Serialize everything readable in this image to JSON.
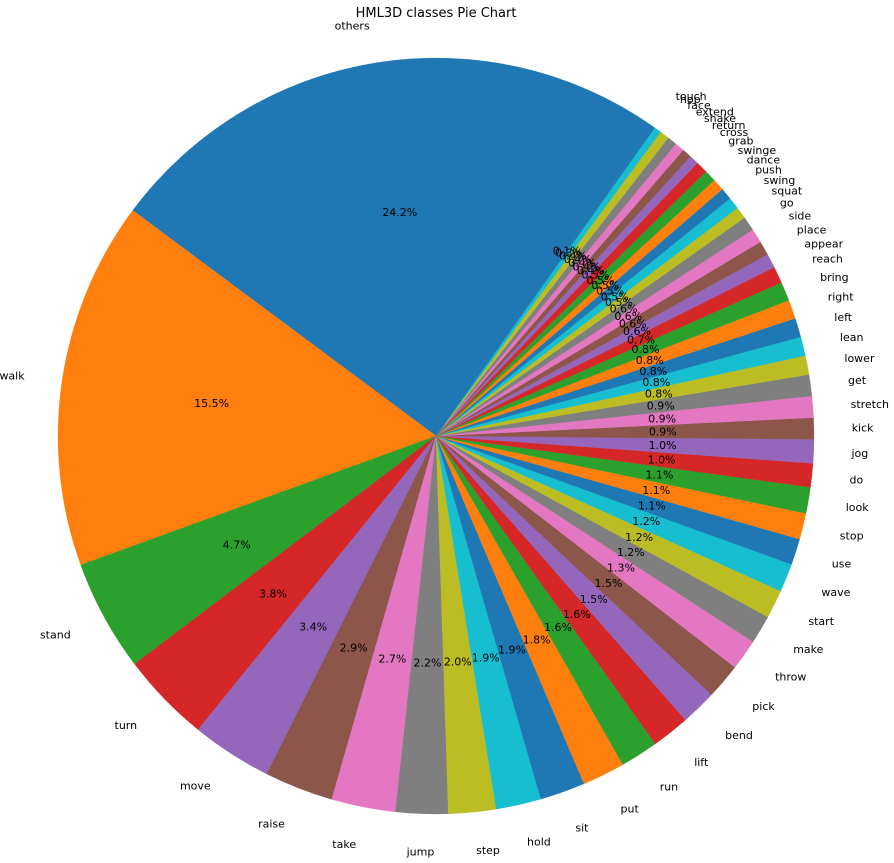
{
  "chart_data": {
    "type": "pie",
    "title": "HML3D classes Pie Chart",
    "categories": [
      "others",
      "walk",
      "stand",
      "turn",
      "move",
      "raise",
      "take",
      "jump",
      "step",
      "hold",
      "sit",
      "put",
      "run",
      "lift",
      "bend",
      "pick",
      "throw",
      "make",
      "start",
      "wave",
      "use",
      "stop",
      "look",
      "do",
      "jog",
      "kick",
      "stretch",
      "get",
      "lower",
      "lean",
      "left",
      "right",
      "bring",
      "reach",
      "appear",
      "place",
      "side",
      "go",
      "squat",
      "swing",
      "push",
      "dance",
      "swinge",
      "grab",
      "cross",
      "return",
      "shake",
      "extend",
      "face",
      "hop",
      "touch"
    ],
    "values": [
      24.2,
      15.5,
      4.7,
      3.8,
      3.4,
      2.9,
      2.7,
      2.2,
      2.0,
      1.9,
      1.9,
      1.8,
      1.6,
      1.6,
      1.5,
      1.5,
      1.3,
      1.2,
      1.2,
      1.2,
      1.1,
      1.1,
      1.1,
      1.0,
      1.0,
      0.9,
      0.9,
      0.9,
      0.8,
      0.8,
      0.8,
      0.8,
      0.8,
      0.7,
      0.6,
      0.6,
      0.6,
      0.6,
      0.5,
      0.5,
      0.5,
      0.5,
      0.5,
      0.5,
      0.4,
      0.4,
      0.4,
      0.4,
      0.4,
      0.3,
      0.1
    ],
    "labels": [
      "24.2%",
      "15.5%",
      "4.7%",
      "3.8%",
      "3.4%",
      "2.9%",
      "2.7%",
      "2.2%",
      "2.0%",
      "1.9%",
      "1.9%",
      "1.8%",
      "1.6%",
      "1.6%",
      "1.5%",
      "1.5%",
      "1.3%",
      "1.2%",
      "1.2%",
      "1.2%",
      "1.1%",
      "1.1%",
      "1.1%",
      "1.0%",
      "1.0%",
      "0.9%",
      "0.9%",
      "0.9%",
      "0.8%",
      "0.8%",
      "0.8%",
      "0.8%",
      "0.8%",
      "0.7%",
      "0.6%",
      "0.6%",
      "0.6%",
      "0.6%",
      "0.5%",
      "0.5%",
      "0.5%",
      "0.5%",
      "0.5%",
      "0.5%",
      "0.4%",
      "0.4%",
      "0.4%",
      "0.4%",
      "0.4%",
      "0.3%",
      "0.1%"
    ],
    "colors": [
      "#1f77b4",
      "#ff7f0e",
      "#2ca02c",
      "#d62728",
      "#9467bd",
      "#8c564b",
      "#e377c2",
      "#7f7f7f",
      "#bcbd22",
      "#17becf"
    ],
    "start_angle_deg": 55,
    "direction": "counterclockwise"
  }
}
